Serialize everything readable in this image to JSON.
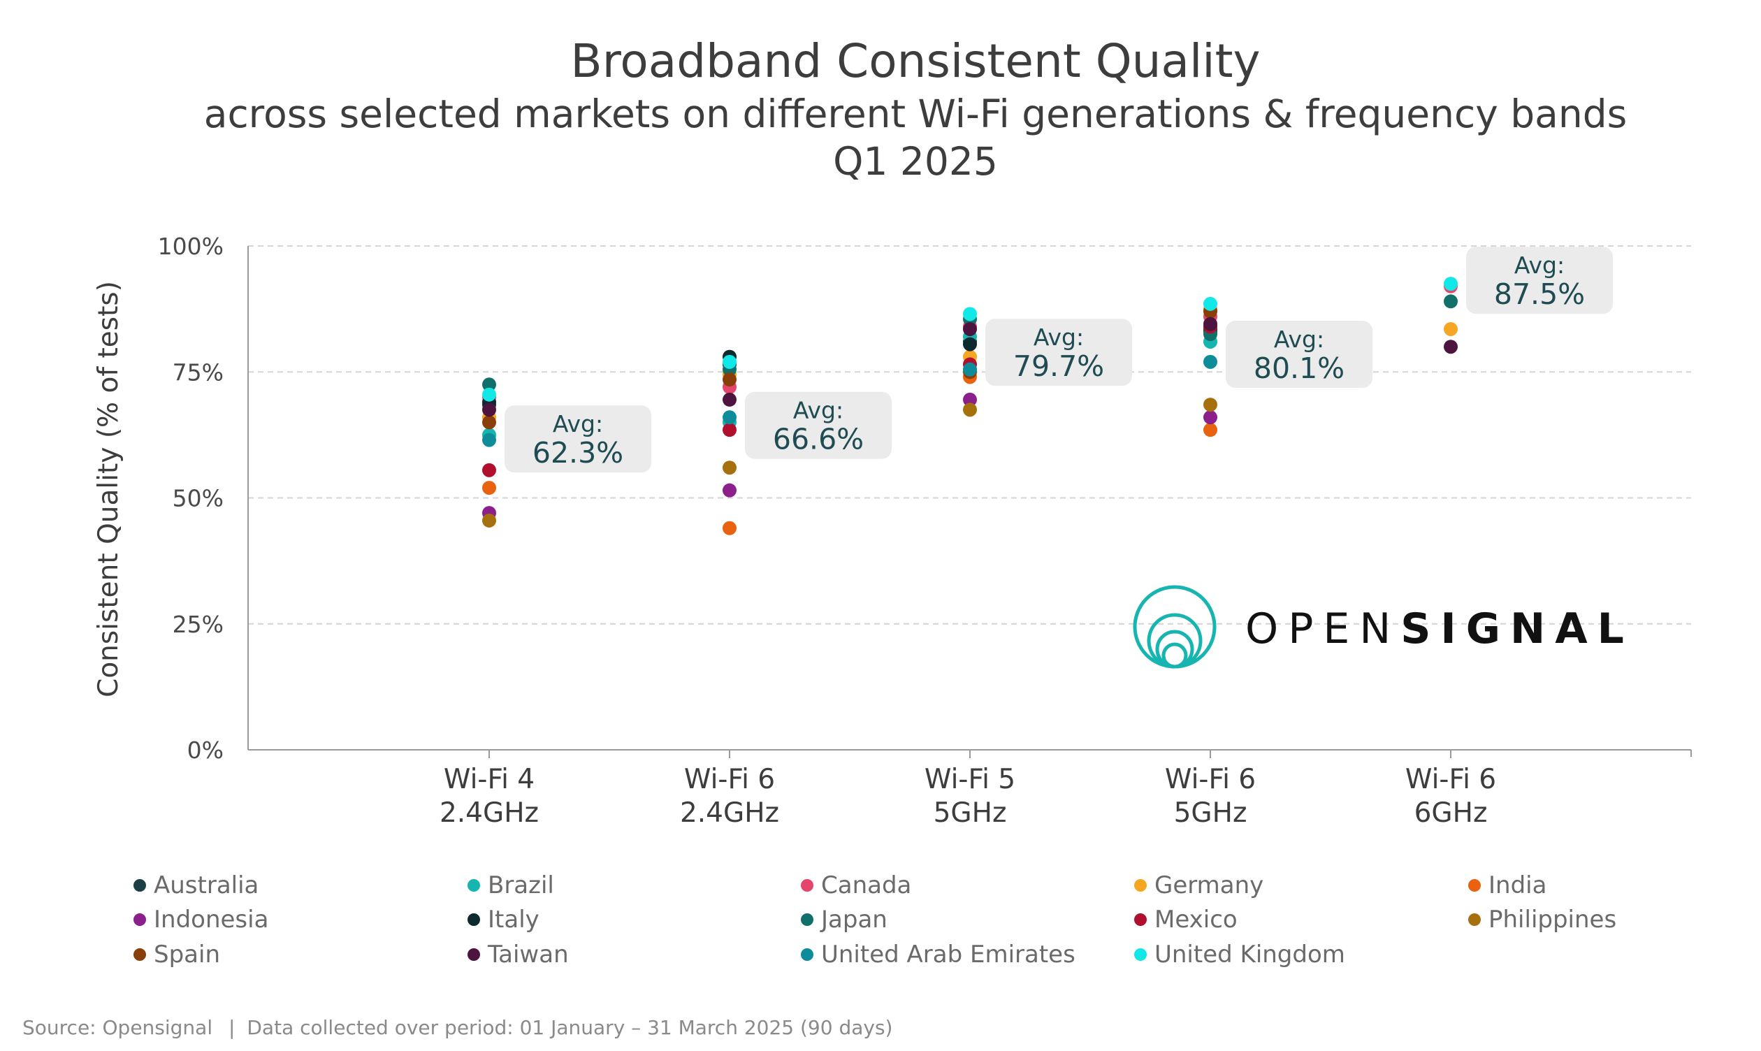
{
  "chart_data": {
    "type": "scatter",
    "title": "Broadband Consistent Quality",
    "subtitle_line1": "across selected markets on different Wi-Fi generations & frequency bands",
    "subtitle_line2": "Q1 2025",
    "ylabel": "Consistent Quality (% of tests)",
    "ylim": [
      0,
      100
    ],
    "yticks": [
      0,
      25,
      50,
      75,
      100
    ],
    "ytick_labels": [
      "0%",
      "25%",
      "50%",
      "75%",
      "100%"
    ],
    "grid": true,
    "categories": [
      {
        "line1": "Wi-Fi 4",
        "line2": "2.4GHz"
      },
      {
        "line1": "Wi-Fi 6",
        "line2": "2.4GHz"
      },
      {
        "line1": "Wi-Fi 5",
        "line2": "5GHz"
      },
      {
        "line1": "Wi-Fi 6",
        "line2": "5GHz"
      },
      {
        "line1": "Wi-Fi 6",
        "line2": "6GHz"
      }
    ],
    "averages": [
      {
        "label": "Avg:",
        "value": "62.3%"
      },
      {
        "label": "Avg:",
        "value": "66.6%"
      },
      {
        "label": "Avg:",
        "value": "79.7%"
      },
      {
        "label": "Avg:",
        "value": "80.1%"
      },
      {
        "label": "Avg:",
        "value": "87.5%"
      }
    ],
    "series": [
      {
        "name": "Australia",
        "color": "#1a3f44",
        "values": [
          68.5,
          76.5,
          81.0,
          83.0,
          null
        ]
      },
      {
        "name": "Brazil",
        "color": "#17b5b0",
        "values": [
          62.5,
          65.0,
          82.0,
          81.0,
          null
        ]
      },
      {
        "name": "Canada",
        "color": "#e6456b",
        "values": [
          70.0,
          72.0,
          84.0,
          86.0,
          92.0
        ]
      },
      {
        "name": "Germany",
        "color": "#f5a623",
        "values": [
          66.0,
          74.5,
          78.0,
          87.5,
          83.5
        ]
      },
      {
        "name": "India",
        "color": "#e8620f",
        "values": [
          52.0,
          44.0,
          74.0,
          63.5,
          null
        ]
      },
      {
        "name": "Indonesia",
        "color": "#8b1f8b",
        "values": [
          47.0,
          51.5,
          69.5,
          66.0,
          null
        ]
      },
      {
        "name": "Italy",
        "color": "#0d2b2e",
        "values": [
          69.0,
          78.0,
          80.5,
          83.5,
          null
        ]
      },
      {
        "name": "Japan",
        "color": "#12706a",
        "values": [
          72.5,
          75.5,
          85.5,
          82.5,
          89.0
        ]
      },
      {
        "name": "Mexico",
        "color": "#b0102e",
        "values": [
          55.5,
          63.5,
          76.5,
          84.0,
          null
        ]
      },
      {
        "name": "Philippines",
        "color": "#a6700f",
        "values": [
          45.5,
          56.0,
          67.5,
          68.5,
          null
        ]
      },
      {
        "name": "Spain",
        "color": "#8a3e08",
        "values": [
          65.0,
          73.5,
          75.0,
          87.0,
          null
        ]
      },
      {
        "name": "Taiwan",
        "color": "#4e1440",
        "values": [
          67.5,
          69.5,
          83.5,
          84.5,
          80.0
        ]
      },
      {
        "name": "United Arab Emirates",
        "color": "#0f8c99",
        "values": [
          61.5,
          66.0,
          75.5,
          77.0,
          null
        ]
      },
      {
        "name": "United Kingdom",
        "color": "#12e8e8",
        "values": [
          70.5,
          77.0,
          86.5,
          88.5,
          92.5
        ]
      }
    ]
  },
  "logo": {
    "text_light": "OPEN",
    "text_bold": "SIGNAL",
    "color": "#17b5b0"
  },
  "footer": {
    "source": "Source: Opensignal",
    "separator": "|",
    "period": "Data collected over period: 01 January – 31 March 2025 (90 days)"
  }
}
